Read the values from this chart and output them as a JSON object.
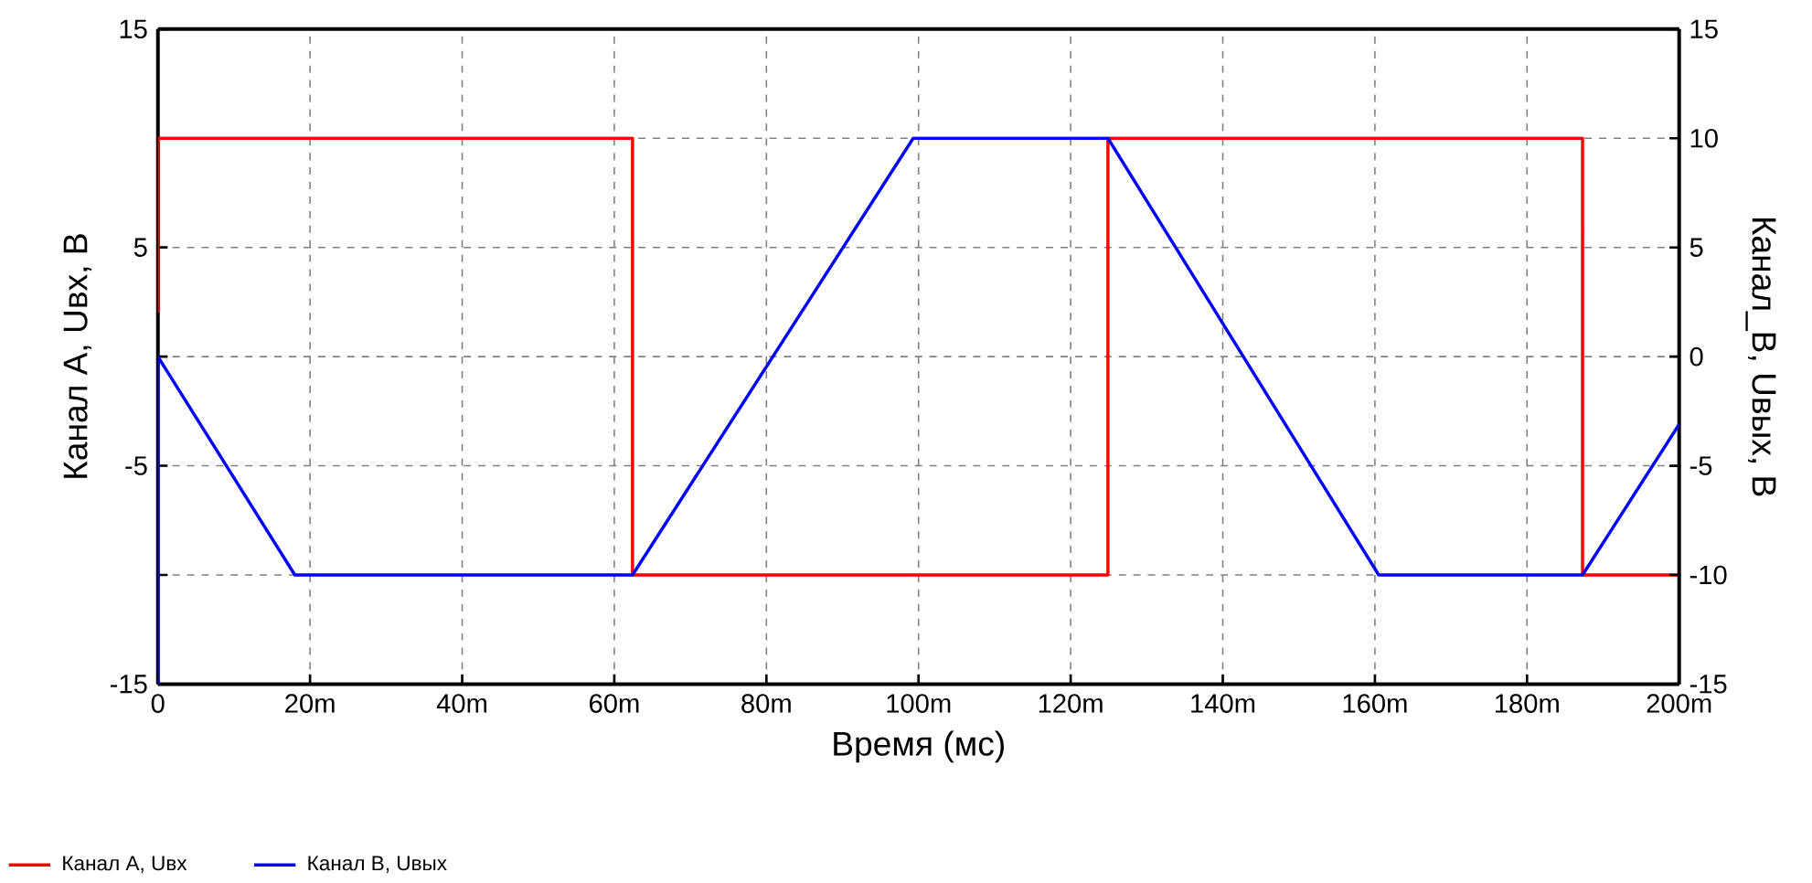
{
  "chart_data": {
    "type": "line",
    "xlabel": "Время (мс)",
    "ylabel": "Канал А,  Uвх, В",
    "y2label": "Канал_В, Uвых, В",
    "xlim": [
      0,
      200
    ],
    "xticks": [
      0,
      {
        "value": 20,
        "label": "20m"
      },
      {
        "value": 40,
        "label": "40m"
      },
      {
        "value": 60,
        "label": "60m"
      },
      {
        "value": 80,
        "label": "80m"
      },
      {
        "value": 100,
        "label": "100m"
      },
      {
        "value": 120,
        "label": "120m"
      },
      {
        "value": 140,
        "label": "140m"
      },
      {
        "value": 160,
        "label": "160m"
      },
      {
        "value": 180,
        "label": "180m"
      },
      {
        "value": 200,
        "label": "200m"
      }
    ],
    "ylim": [
      -15,
      15
    ],
    "yticks": [
      15,
      {
        "value": 10,
        "label": null
      },
      5,
      {
        "value": 0,
        "label": null
      },
      -5,
      {
        "value": -10,
        "label": null
      },
      -15
    ],
    "y2lim": [
      -15,
      15
    ],
    "y2ticks": [
      15,
      10,
      5,
      0,
      -5,
      -10,
      -15
    ],
    "grid": true,
    "legend": "bottom left",
    "marker": "none",
    "line_style": "solid",
    "series": [
      {
        "name": "Канал А, Uвх",
        "color": "#ff0000",
        "x": [
          0,
          0,
          62.4,
          62.4,
          124.9,
          124.9,
          187.3,
          187.3,
          200
        ],
        "values": [
          2,
          10,
          10,
          -10,
          -10,
          10,
          10,
          -10,
          -10
        ]
      },
      {
        "name": "Канал В, Uвых",
        "color": "#0000ff",
        "axis": "y2",
        "x": [
          0,
          0,
          18,
          62.4,
          99.3,
          124.9,
          160.5,
          187.3,
          200
        ],
        "values": [
          -15,
          0,
          -10,
          -10,
          10,
          10,
          -10,
          -10,
          -3.1
        ]
      }
    ]
  }
}
